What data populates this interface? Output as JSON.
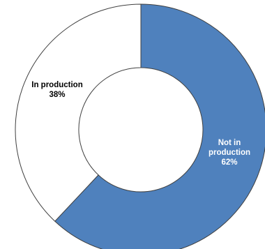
{
  "chart_data": {
    "type": "pie",
    "style": "donut",
    "slices": [
      {
        "label_lines": [
          "Not in",
          "production",
          "62%"
        ],
        "value": 62,
        "color": "#4f81bd",
        "label_color": "#ffffff"
      },
      {
        "label_lines": [
          "In production",
          "38%"
        ],
        "value": 38,
        "color": "#ffffff",
        "label_color": "#000000"
      }
    ]
  }
}
